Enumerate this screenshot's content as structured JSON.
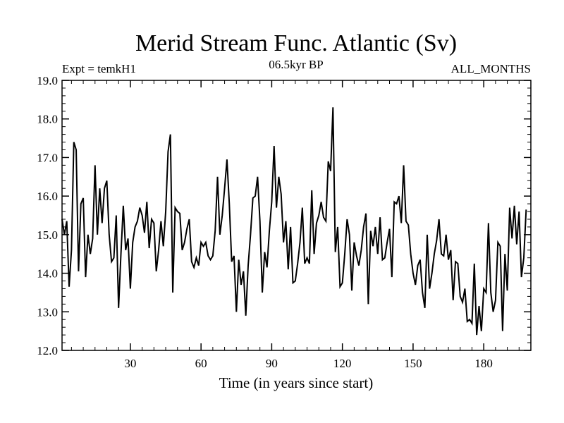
{
  "chart_data": {
    "type": "line",
    "title": "Merid Stream Func. Atlantic (Sv)",
    "subtitle_left": "Expt = temkH1",
    "subtitle_center": "06.5kyr BP",
    "subtitle_right": "ALL_MONTHS",
    "xlabel": "Time (in years since start)",
    "ylabel": "",
    "xlim": [
      1,
      200
    ],
    "ylim": [
      12.0,
      19.0
    ],
    "xticks": [
      30,
      60,
      90,
      120,
      150,
      180
    ],
    "yticks": [
      12.0,
      13.0,
      14.0,
      15.0,
      16.0,
      17.0,
      18.0,
      19.0
    ],
    "grid": false,
    "line_color": "#000000",
    "series": [
      {
        "name": "Merid Stream Func. Atlantic",
        "values": [
          15.4,
          15.0,
          15.35,
          13.65,
          14.6,
          17.4,
          17.2,
          14.05,
          15.8,
          15.95,
          13.9,
          15.0,
          14.5,
          14.9,
          16.8,
          15.0,
          16.2,
          15.3,
          16.2,
          16.4,
          15.0,
          14.3,
          14.4,
          15.5,
          13.1,
          14.5,
          15.75,
          14.6,
          14.9,
          13.6,
          14.8,
          15.2,
          15.35,
          15.7,
          15.5,
          15.05,
          15.85,
          14.65,
          15.4,
          15.3,
          14.05,
          14.6,
          15.35,
          14.7,
          15.6,
          17.15,
          17.6,
          13.5,
          15.7,
          15.6,
          15.55,
          14.6,
          14.8,
          15.15,
          15.4,
          14.3,
          14.15,
          14.4,
          14.2,
          14.8,
          14.7,
          14.8,
          14.45,
          14.35,
          14.45,
          15.1,
          16.5,
          15.0,
          15.5,
          16.2,
          16.95,
          15.8,
          14.3,
          14.45,
          13.0,
          14.35,
          13.7,
          14.05,
          12.9,
          14.2,
          15.0,
          15.95,
          16.0,
          16.5,
          15.35,
          13.5,
          14.55,
          14.15,
          15.1,
          15.85,
          17.3,
          15.7,
          16.5,
          16.05,
          14.8,
          15.35,
          14.1,
          15.2,
          13.75,
          13.8,
          14.25,
          14.8,
          15.7,
          14.25,
          14.4,
          14.25,
          16.15,
          14.5,
          15.3,
          15.5,
          15.85,
          15.45,
          15.35,
          16.9,
          16.65,
          18.3,
          14.55,
          15.2,
          13.65,
          13.75,
          14.5,
          15.4,
          15.0,
          13.55,
          14.8,
          14.45,
          14.2,
          14.6,
          15.2,
          15.55,
          13.2,
          15.1,
          14.7,
          15.2,
          14.5,
          15.45,
          14.35,
          14.4,
          14.8,
          15.15,
          13.9,
          15.85,
          15.8,
          16.0,
          15.3,
          16.8,
          15.35,
          15.25,
          14.5,
          14.0,
          13.7,
          14.2,
          14.35,
          13.5,
          13.1,
          15.0,
          13.6,
          14.0,
          14.5,
          14.85,
          15.4,
          14.5,
          14.45,
          15.0,
          14.35,
          14.6,
          13.3,
          14.3,
          14.25,
          13.4,
          13.25,
          13.6,
          12.75,
          12.8,
          12.7,
          14.25,
          12.4,
          13.15,
          12.5,
          13.6,
          13.5,
          15.3,
          13.5,
          13.0,
          13.3,
          14.8,
          14.7,
          12.5,
          14.5,
          13.55,
          15.7,
          14.9,
          15.75,
          14.75,
          15.6,
          13.9,
          14.4,
          15.65
        ]
      }
    ]
  }
}
